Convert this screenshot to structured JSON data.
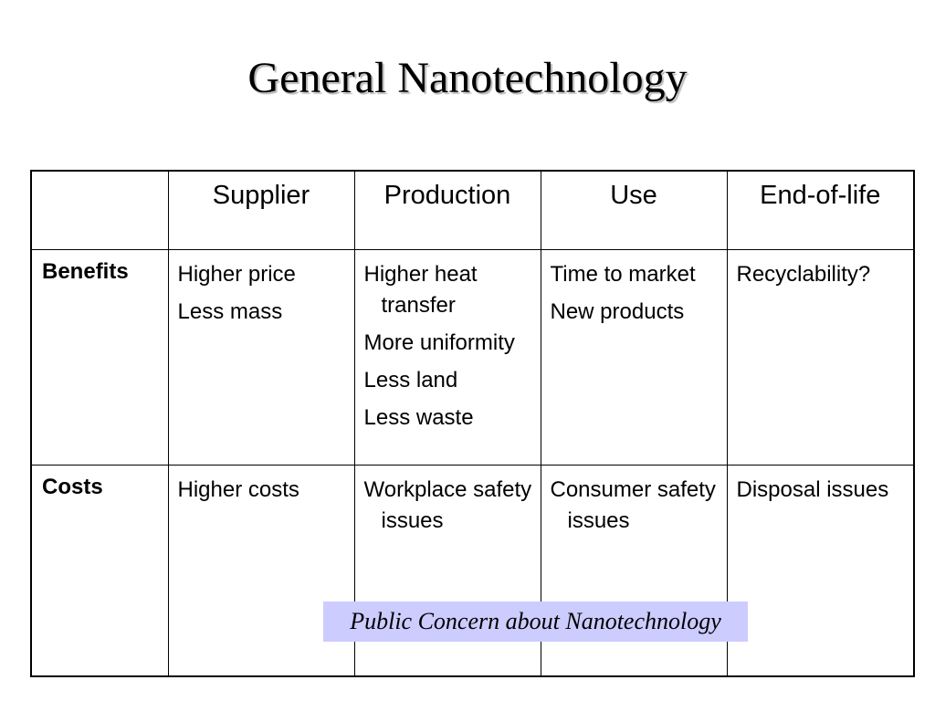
{
  "title": "General Nanotechnology",
  "table": {
    "columns": [
      "",
      "Supplier",
      "Production",
      "Use",
      "End-of-life"
    ],
    "rows": [
      {
        "label": "Benefits",
        "cells": [
          [
            "Higher price",
            "Less mass"
          ],
          [
            "Higher heat transfer",
            "More uniformity",
            "Less land",
            "Less waste"
          ],
          [
            "Time to market",
            "New products"
          ],
          [
            "Recyclability?"
          ]
        ]
      },
      {
        "label": "Costs",
        "cells": [
          [
            "Higher costs"
          ],
          [
            "Workplace safety issues"
          ],
          [
            "Consumer safety issues"
          ],
          [
            "Disposal issues"
          ]
        ]
      }
    ]
  },
  "callout": "Public Concern about Nanotechnology",
  "colors": {
    "callout_background": "#ccccff",
    "border": "#000000",
    "background": "#ffffff"
  }
}
